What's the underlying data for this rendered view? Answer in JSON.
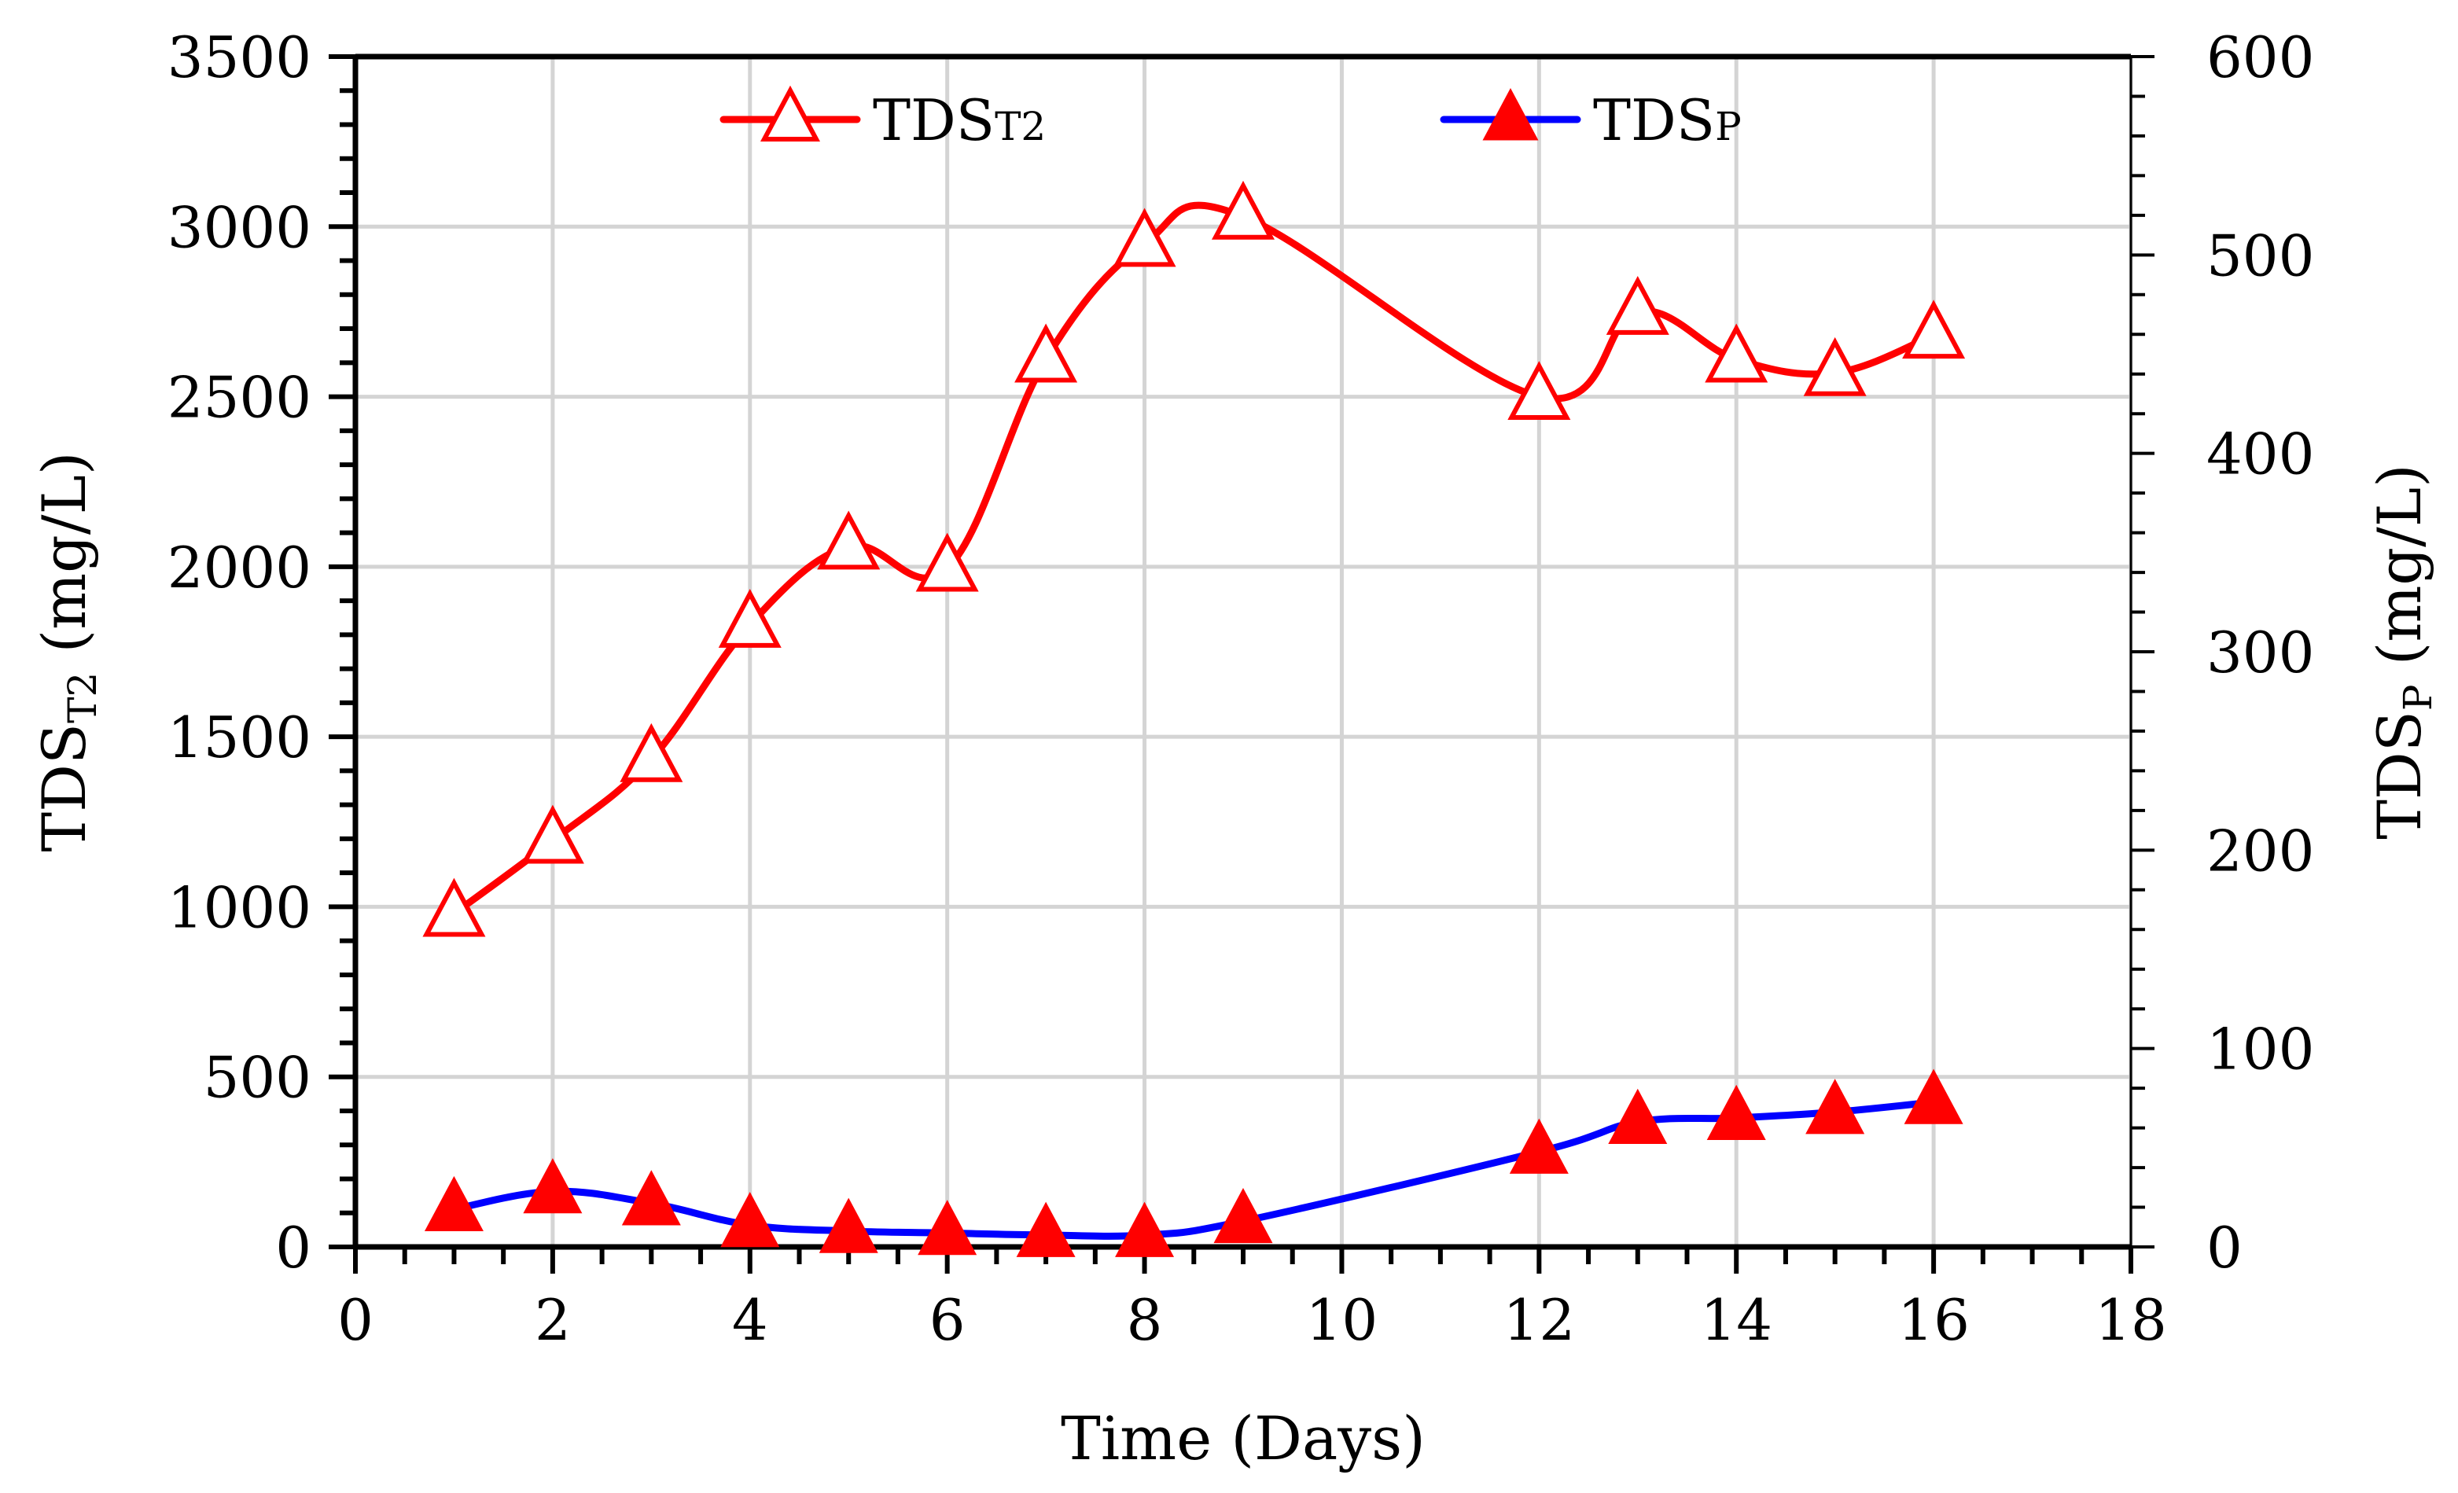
{
  "chart_data": {
    "type": "line",
    "xlabel": "Time (Days)",
    "ylabel_left": {
      "main": "TDS",
      "sub": "T2",
      "unit": " (mg/L)"
    },
    "ylabel_right": {
      "main": "TDS",
      "sub": "P",
      "unit": " (mg/L)"
    },
    "xlim": [
      0,
      18
    ],
    "ylim_left": [
      0,
      3500
    ],
    "ylim_right": [
      0,
      600
    ],
    "x_ticks": [
      0,
      2,
      4,
      6,
      8,
      10,
      12,
      14,
      16,
      18
    ],
    "y_left_ticks": [
      0,
      500,
      1000,
      1500,
      2000,
      2500,
      3000,
      3500
    ],
    "y_right_ticks": [
      0,
      100,
      200,
      300,
      400,
      500,
      600
    ],
    "grid": true,
    "legend_placement": "top",
    "series": [
      {
        "name": "TDS",
        "name_sub": "T2",
        "axis": "left",
        "color": "#ff0000",
        "marker": "open-triangle",
        "x": [
          1,
          2,
          3,
          4,
          5,
          6,
          7,
          8,
          9,
          12,
          13,
          14,
          15,
          16
        ],
        "y": [
          980,
          1195,
          1435,
          1830,
          2060,
          1995,
          2610,
          2950,
          3030,
          2500,
          2750,
          2610,
          2570,
          2680
        ]
      },
      {
        "name": "TDS",
        "name_sub": "P",
        "axis": "right",
        "color": "#0000ff",
        "marker_color": "#ff0000",
        "marker": "filled-triangle",
        "x": [
          1,
          2,
          3,
          4,
          5,
          6,
          7,
          8,
          9,
          12,
          13,
          14,
          15,
          16
        ],
        "y": [
          19,
          28,
          22,
          11,
          8,
          7,
          6,
          6,
          13,
          48,
          63,
          65,
          68,
          73
        ]
      }
    ]
  }
}
